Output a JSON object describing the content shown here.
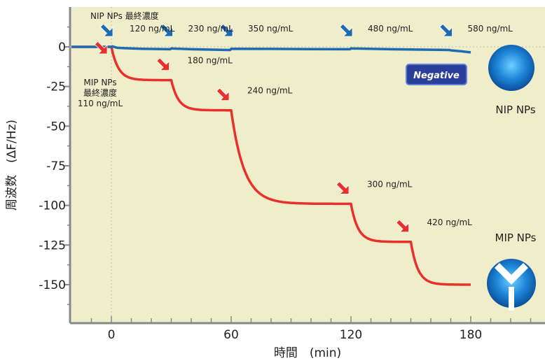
{
  "chart_data": {
    "type": "line",
    "xlabel": "時間　(min)",
    "ylabel": "周波数　(ΔF/Hz)",
    "xlim": [
      -20,
      215
    ],
    "ylim": [
      -175,
      25
    ],
    "xticks": [
      0,
      60,
      120,
      180
    ],
    "yticks": [
      0,
      -25,
      -50,
      -75,
      -100,
      -125,
      -150
    ],
    "grid": false,
    "colors": {
      "nip": "#1e6bb0",
      "mip": "#e8312a",
      "panel": "#efedca",
      "axis": "#888888"
    },
    "series": [
      {
        "name": "NIP NPs",
        "color": "#1e6bb0",
        "x": [
          -20,
          0,
          0.5,
          3,
          8,
          15,
          29.5,
          30,
          40,
          59.5,
          60,
          80,
          100,
          119.5,
          120,
          140,
          160,
          169.5,
          170,
          175,
          180
        ],
        "y": [
          0,
          0,
          0.3,
          -0.6,
          -0.9,
          -1.2,
          -1.5,
          -1.0,
          -1.5,
          -2.0,
          -1.2,
          -1.3,
          -1.4,
          -1.5,
          -1.0,
          -1.5,
          -1.8,
          -2.0,
          -2.2,
          -2.8,
          -3.5
        ]
      },
      {
        "name": "MIP NPs",
        "color": "#e8312a",
        "segments": [
          {
            "t0": 0,
            "t1": 30,
            "y0": 0,
            "y1": -21,
            "tau": 3.5
          },
          {
            "t0": 30,
            "t1": 60,
            "y0": -21,
            "y1": -40,
            "tau": 3.5
          },
          {
            "t0": 60,
            "t1": 120,
            "y0": -40,
            "y1": -99,
            "tau": 6.5
          },
          {
            "t0": 120,
            "t1": 150,
            "y0": -99,
            "y1": -123,
            "tau": 3.5
          },
          {
            "t0": 150,
            "t1": 180,
            "y0": -123,
            "y1": -150,
            "tau": 3.5
          }
        ],
        "pre": {
          "x": [
            -20,
            0
          ],
          "y": [
            0,
            0
          ]
        }
      }
    ],
    "annotations": {
      "nip": [
        {
          "label": "NIP NPs 最終濃度",
          "label2": "120 ng/mL",
          "x": 0
        },
        {
          "label": "230 ng/mL",
          "x": 30
        },
        {
          "label": "350 ng/mL",
          "x": 60
        },
        {
          "label": "480 ng/mL",
          "x": 120
        },
        {
          "label": "580 ng/mL",
          "x": 170
        }
      ],
      "mip": [
        {
          "lines": [
            "MIP NPs",
            "最終濃度",
            "110 ng/mL"
          ],
          "x": 0,
          "y": 0
        },
        {
          "lines": [
            "180 ng/mL"
          ],
          "x": 30,
          "y": -21
        },
        {
          "lines": [
            "240 ng/mL"
          ],
          "x": 60,
          "y": -40
        },
        {
          "lines": [
            "300 ng/mL"
          ],
          "x": 120,
          "y": -99
        },
        {
          "lines": [
            "420 ng/mL"
          ],
          "x": 150,
          "y": -123
        }
      ]
    },
    "legend": {
      "negative_badge": "Negative",
      "nip_label": "NIP NPs",
      "mip_label": "MIP NPs"
    }
  }
}
